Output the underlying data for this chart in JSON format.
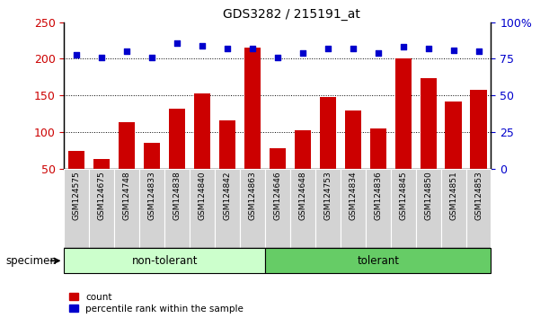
{
  "title": "GDS3282 / 215191_at",
  "categories": [
    "GSM124575",
    "GSM124675",
    "GSM124748",
    "GSM124833",
    "GSM124838",
    "GSM124840",
    "GSM124842",
    "GSM124863",
    "GSM124646",
    "GSM124648",
    "GSM124753",
    "GSM124834",
    "GSM124836",
    "GSM124845",
    "GSM124850",
    "GSM124851",
    "GSM124853"
  ],
  "counts": [
    74,
    63,
    114,
    85,
    132,
    153,
    116,
    215,
    78,
    102,
    148,
    129,
    105,
    200,
    174,
    142,
    158
  ],
  "percentile_vals": [
    78,
    76,
    80,
    76,
    86,
    84,
    82,
    82,
    76,
    79,
    82,
    82,
    79,
    83,
    82,
    81,
    80
  ],
  "non_tolerant_count": 8,
  "tolerant_count": 9,
  "bar_color": "#cc0000",
  "dot_color": "#0000cc",
  "ylim_left": [
    50,
    250
  ],
  "ylim_right": [
    0,
    100
  ],
  "yticks_left": [
    50,
    100,
    150,
    200,
    250
  ],
  "ytick_labels_left": [
    "50",
    "100",
    "150",
    "200",
    "250"
  ],
  "yticks_right": [
    0,
    25,
    50,
    75,
    100
  ],
  "ytick_labels_right": [
    "0",
    "25",
    "50",
    "75",
    "100%"
  ],
  "grid_values": [
    100,
    150,
    200
  ],
  "non_tolerant_color": "#ccffcc",
  "tolerant_color": "#66cc66",
  "legend_count_label": "count",
  "legend_pct_label": "percentile rank within the sample",
  "title_fontsize": 10,
  "tick_fontsize": 9,
  "label_fontsize": 9,
  "bg_color": "#ffffff",
  "xticklabel_bg": "#d3d3d3"
}
